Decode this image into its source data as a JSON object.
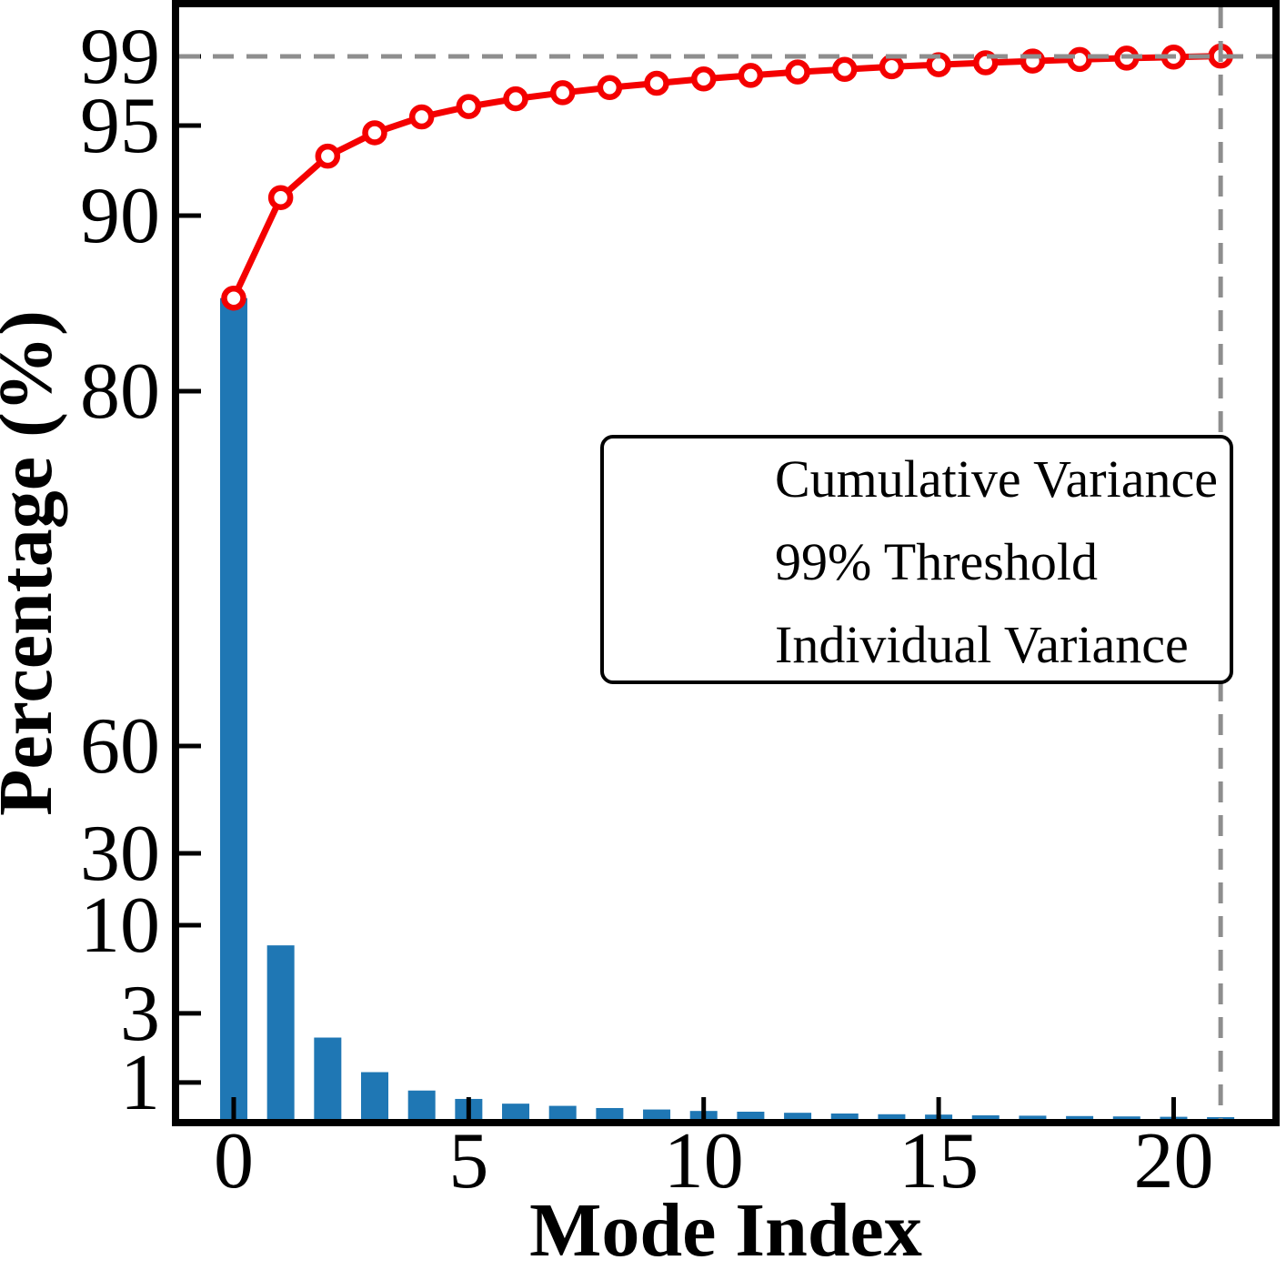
{
  "chart_data": {
    "type": "bar+line",
    "title": "",
    "x": [
      0,
      1,
      2,
      3,
      4,
      5,
      6,
      7,
      8,
      9,
      10,
      11,
      12,
      13,
      14,
      15,
      16,
      17,
      18,
      19,
      20,
      21
    ],
    "series": [
      {
        "name": "Cumulative Variance",
        "type": "line",
        "color": "#f40000",
        "marker": "open-circle",
        "values": [
          85.3,
          91.0,
          93.3,
          94.6,
          95.5,
          96.1,
          96.55,
          96.9,
          97.2,
          97.45,
          97.7,
          97.9,
          98.1,
          98.25,
          98.4,
          98.52,
          98.63,
          98.73,
          98.82,
          98.9,
          98.96,
          99.02
        ]
      },
      {
        "name": "Individual Variance",
        "type": "bar",
        "color": "#1f77b4",
        "values": [
          85.3,
          8.4,
          2.3,
          1.3,
          0.78,
          0.55,
          0.42,
          0.36,
          0.3,
          0.26,
          0.22,
          0.2,
          0.17,
          0.15,
          0.13,
          0.12,
          0.1,
          0.09,
          0.08,
          0.07,
          0.06,
          0.05
        ]
      }
    ],
    "threshold": {
      "label": "99% Threshold",
      "value": 99,
      "mode_index": 21,
      "color": "#8e8e8e",
      "style": "dashed"
    },
    "x_axis": {
      "label": "Mode Index",
      "ticks": [
        0,
        5,
        10,
        15,
        20
      ],
      "first_mode_fraction": 0.0499,
      "mode_step_fraction": 0.04299
    },
    "y_axis": {
      "label": "Percentage (%)",
      "ticks": [
        99,
        95,
        90,
        80,
        60,
        30,
        10,
        3,
        1
      ],
      "scale": "custom-nonlinear",
      "scale_anchors": {
        "values": [
          0,
          1,
          3,
          10,
          30,
          60,
          80,
          90,
          95,
          99
        ],
        "fractions": [
          1.0,
          0.9672,
          0.905,
          0.8257,
          0.761,
          0.6645,
          0.3453,
          0.1874,
          0.1064,
          0.0442
        ]
      }
    },
    "legend": {
      "position": "center-right",
      "entries": [
        "Cumulative Variance",
        "99% Threshold",
        "Individual Variance"
      ]
    },
    "colors": {
      "line": "#f40000",
      "bar": "#1f77b4",
      "threshold": "#8e8e8e",
      "frame": "#000000",
      "background": "#ffffff"
    }
  }
}
